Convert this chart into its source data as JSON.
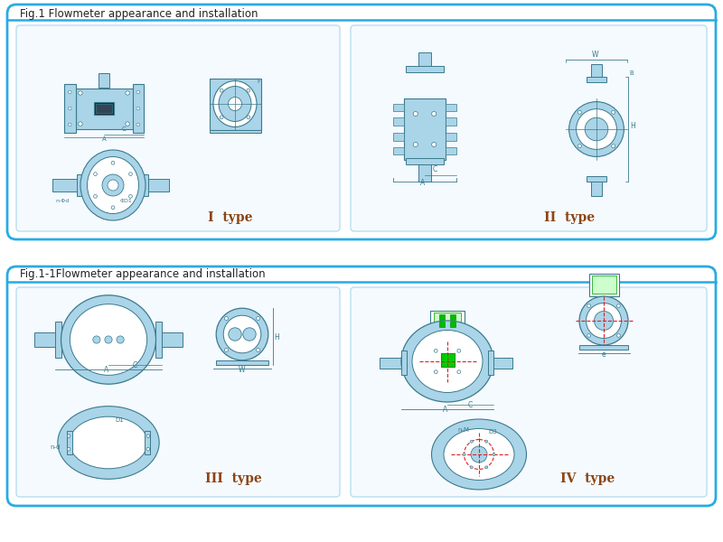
{
  "fig_title1": "Fig.1 Flowmeter appearance and installation",
  "fig_title2": "Fig.1-1Flowmeter appearance and installation",
  "type1_label": "I  type",
  "type2_label": "II  type",
  "type3_label": "III  type",
  "type4_label": "IV  type",
  "outer_border_color": "#29abe2",
  "inner_border_color": "#b8dff0",
  "bg_color": "#ffffff",
  "label_color": "#8B4513",
  "drawing_color": "#3a7a8c",
  "drawing_light": "#aad4e8",
  "drawing_dark": "#1a4a5a",
  "red_line_color": "#dd2222",
  "green_color": "#22aa22",
  "fig_width": 8.0,
  "fig_height": 6.0
}
